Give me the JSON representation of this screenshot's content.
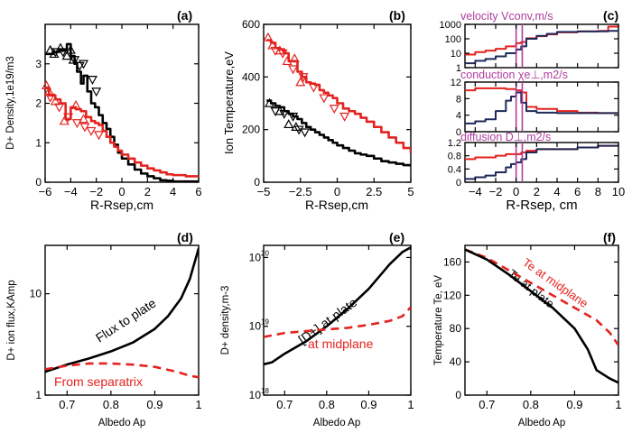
{
  "colors": {
    "black": "#000000",
    "red": "#e3231f",
    "magenta": "#b03d9e",
    "navy": "#1f2a5a"
  },
  "panels": {
    "a": {
      "label": "(a)"
    },
    "b": {
      "label": "(b)"
    },
    "c": {
      "label": "(c)"
    },
    "d": {
      "label": "(d)"
    },
    "e": {
      "label": "(e)"
    },
    "f": {
      "label": "(f)"
    }
  },
  "chart_data": [
    {
      "id": "a",
      "type": "line",
      "xlabel": "R-Rsep,cm",
      "ylabel": "D+ Density,1e19/m3",
      "xlim": [
        -6,
        6
      ],
      "ylim": [
        0,
        4
      ],
      "xticks": [
        -6,
        -4,
        -2,
        0,
        2,
        4,
        6
      ],
      "xtick_labels": [
        "−6",
        "−4",
        "−2",
        "0",
        "2",
        "4",
        "6"
      ],
      "yticks": [
        0,
        1,
        2,
        3
      ],
      "ytick_labels": [
        "0",
        "1",
        "2",
        "3"
      ],
      "series": [
        {
          "color": "black",
          "style": "step",
          "x": [
            -6,
            -5.4,
            -4.9,
            -4.3,
            -4.0,
            -3.7,
            -3.5,
            -3.2,
            -3.0,
            -2.7,
            -2.4,
            -2.1,
            -1.8,
            -1.5,
            -1.2,
            -0.9,
            -0.6,
            -0.3,
            0,
            0.5,
            1,
            1.5,
            2,
            2.5,
            3,
            3.5,
            4,
            5,
            6
          ],
          "y": [
            3.25,
            3.3,
            3.35,
            3.5,
            3.2,
            3.0,
            2.8,
            2.5,
            2.7,
            2.3,
            2.0,
            1.9,
            1.7,
            1.5,
            1.35,
            1.15,
            0.95,
            0.75,
            0.6,
            0.45,
            0.32,
            0.22,
            0.15,
            0.1,
            0.05,
            0.04,
            0.02,
            0.02,
            0.02
          ]
        },
        {
          "color": "red",
          "style": "step",
          "x": [
            -6,
            -5.7,
            -5.2,
            -4.8,
            -4.4,
            -4.0,
            -3.6,
            -3.2,
            -2.8,
            -2.4,
            -2.1,
            -1.8,
            -1.5,
            -1.2,
            -0.9,
            -0.6,
            -0.3,
            0,
            0.5,
            1,
            1.5,
            2,
            2.5,
            3,
            3.5,
            4,
            5,
            6
          ],
          "y": [
            2.4,
            2.2,
            2.1,
            2.0,
            1.6,
            1.9,
            1.85,
            1.8,
            1.65,
            1.55,
            1.5,
            1.45,
            1.3,
            1.15,
            1.0,
            0.9,
            0.8,
            0.7,
            0.6,
            0.5,
            0.42,
            0.35,
            0.3,
            0.25,
            0.2,
            0.18,
            0.15,
            0.15
          ]
        }
      ],
      "markers": [
        {
          "color": "black",
          "symbol": "triangle-up",
          "x": [
            -5.6,
            -5.3,
            -4.8,
            -4.3,
            -4.0,
            -3.8
          ],
          "y": [
            3.35,
            3.25,
            3.4,
            3.2,
            3.35,
            3.1
          ]
        },
        {
          "color": "black",
          "symbol": "triangle-down",
          "x": [
            -5.2,
            -4.6,
            -3.7,
            -3.3,
            -3.0,
            -2.3,
            -2.0
          ],
          "y": [
            3.3,
            3.3,
            3.1,
            2.95,
            3.0,
            2.6,
            2.3
          ]
        },
        {
          "color": "red",
          "symbol": "triangle-up",
          "x": [
            -5.9,
            -5.7,
            -5.2,
            -4.5,
            -3.6,
            -3.0
          ],
          "y": [
            2.45,
            2.3,
            2.05,
            1.55,
            1.95,
            1.6
          ]
        },
        {
          "color": "red",
          "symbol": "triangle-down",
          "x": [
            -5.6,
            -4.9,
            -4.2,
            -3.5,
            -2.9,
            -2.4,
            -1.8
          ],
          "y": [
            2.15,
            1.9,
            1.65,
            1.5,
            1.4,
            1.3,
            1.2
          ]
        }
      ]
    },
    {
      "id": "b",
      "type": "line",
      "xlabel": "R-Rsep,cm",
      "ylabel": "Ion Temperature,eV",
      "xlim": [
        -5,
        5
      ],
      "ylim": [
        0,
        600
      ],
      "xticks": [
        -5,
        -2.5,
        0,
        2.5,
        5
      ],
      "xtick_labels": [
        "−5",
        "−2.5",
        "0",
        "2.5",
        "5"
      ],
      "yticks": [
        0,
        200,
        400,
        600
      ],
      "ytick_labels": [
        "0",
        "200",
        "400",
        "600"
      ],
      "series": [
        {
          "color": "red",
          "style": "step",
          "x": [
            -4.8,
            -4.5,
            -4.2,
            -3.9,
            -3.6,
            -3.3,
            -3.0,
            -2.7,
            -2.4,
            -2.1,
            -1.8,
            -1.5,
            -1.2,
            -0.9,
            -0.6,
            -0.3,
            0,
            0.4,
            0.8,
            1.2,
            1.6,
            2.0,
            2.5,
            3.0,
            3.5,
            4.0,
            4.5,
            5.0
          ],
          "y": [
            540,
            530,
            510,
            505,
            490,
            460,
            460,
            420,
            400,
            380,
            375,
            370,
            350,
            340,
            330,
            320,
            300,
            280,
            270,
            260,
            245,
            230,
            210,
            190,
            170,
            150,
            130,
            110
          ]
        },
        {
          "color": "black",
          "style": "step",
          "x": [
            -4.8,
            -4.5,
            -4.2,
            -3.9,
            -3.6,
            -3.3,
            -3.0,
            -2.7,
            -2.4,
            -2.1,
            -1.8,
            -1.5,
            -1.2,
            -0.9,
            -0.6,
            -0.3,
            0,
            0.4,
            0.8,
            1.2,
            1.6,
            2.0,
            2.5,
            3.0,
            3.5,
            4.0,
            4.5,
            5.0
          ],
          "y": [
            310,
            300,
            290,
            285,
            270,
            260,
            250,
            240,
            225,
            210,
            200,
            190,
            180,
            170,
            160,
            150,
            140,
            130,
            120,
            110,
            105,
            100,
            90,
            80,
            75,
            70,
            65,
            60
          ]
        }
      ],
      "markers": [
        {
          "color": "red",
          "symbol": "triangle-up",
          "x": [
            -4.7,
            -4.4,
            -3.9,
            -3.4,
            -2.9,
            -2.5
          ],
          "y": [
            550,
            520,
            500,
            460,
            470,
            380
          ]
        },
        {
          "color": "red",
          "symbol": "triangle-down",
          "x": [
            -4.2,
            -3.7,
            -3.0,
            -2.3,
            -1.6,
            -0.9,
            -0.2,
            0.5
          ],
          "y": [
            500,
            490,
            430,
            400,
            360,
            320,
            280,
            250
          ]
        },
        {
          "color": "black",
          "symbol": "triangle-up",
          "x": [
            -4.6,
            -3.9,
            -3.3,
            -2.8
          ],
          "y": [
            300,
            270,
            220,
            210
          ]
        },
        {
          "color": "black",
          "symbol": "triangle-down",
          "x": [
            -4.2,
            -3.6,
            -3.0,
            -2.6,
            -2.2
          ],
          "y": [
            270,
            260,
            250,
            200,
            190
          ]
        }
      ]
    },
    {
      "id": "c",
      "type": "line",
      "xlabel": "R-Rsep, cm",
      "xlim": [
        -5,
        10
      ],
      "xticks": [
        -4,
        -2,
        0,
        2,
        4,
        6,
        8,
        10
      ],
      "xtick_labels": [
        "−4",
        "−2",
        "0",
        "2",
        "4",
        "6",
        "8",
        "10"
      ],
      "subplots": [
        {
          "title": "velocity Vconv,m/s",
          "yscale": "log",
          "ylim": [
            1,
            1000
          ],
          "yticks": [
            1,
            10,
            100,
            1000
          ],
          "ytick_labels": [
            "1",
            "10",
            "100",
            "1000"
          ],
          "series": [
            {
              "color": "red",
              "style": "step",
              "x": [
                -5,
                -4,
                -3,
                -2,
                -1,
                0,
                0.5,
                1,
                2,
                3,
                4,
                6,
                8,
                9,
                10
              ],
              "y": [
                8,
                12,
                15,
                20,
                30,
                50,
                60,
                110,
                150,
                200,
                280,
                330,
                350,
                700,
                900
              ]
            },
            {
              "color": "navy",
              "style": "step",
              "x": [
                -5,
                -4,
                -3,
                -2,
                -1,
                0,
                0.5,
                1,
                2,
                3,
                4,
                6,
                8,
                9,
                10
              ],
              "y": [
                2,
                3,
                4,
                6,
                10,
                18,
                30,
                100,
                160,
                220,
                300,
                320,
                330,
                350,
                350
              ]
            }
          ],
          "vlines": [
            0,
            0.6
          ]
        },
        {
          "title": "conduction χe⊥,m2/s",
          "ylim": [
            0,
            12
          ],
          "yticks": [
            0,
            4,
            8,
            12
          ],
          "ytick_labels": [
            "0",
            "4",
            "8",
            "12"
          ],
          "series": [
            {
              "color": "red",
              "style": "step",
              "x": [
                -5,
                -4,
                -3,
                -2,
                -1,
                0,
                0.5,
                1,
                2,
                4,
                6,
                8,
                10
              ],
              "y": [
                10,
                10.5,
                10.5,
                10.5,
                10.3,
                10,
                9.5,
                6,
                5.5,
                5,
                4.6,
                4.5,
                4.5
              ]
            },
            {
              "color": "navy",
              "style": "step",
              "x": [
                -5,
                -4,
                -3,
                -2,
                -1,
                -0.5,
                0,
                0.5,
                1,
                2,
                4,
                6,
                8,
                10
              ],
              "y": [
                2,
                2.5,
                3,
                5,
                7.5,
                8.5,
                9.5,
                7,
                5,
                4.6,
                4.5,
                4.5,
                4.5,
                4.5
              ]
            }
          ],
          "vlines": [
            0,
            0.6
          ]
        },
        {
          "title": "diffusion D⊥,m2/s",
          "ylim": [
            0,
            1.2
          ],
          "yticks": [
            0,
            0.4,
            0.8,
            1.2
          ],
          "ytick_labels": [
            "0",
            "0.4",
            "0.8",
            "1.2"
          ],
          "series": [
            {
              "color": "red",
              "style": "step",
              "x": [
                -5,
                -4,
                -3,
                -2,
                -1,
                0,
                0.5,
                1,
                2,
                4,
                6,
                8,
                10
              ],
              "y": [
                0.7,
                0.75,
                0.75,
                0.8,
                0.85,
                0.85,
                0.9,
                0.95,
                1.0,
                1.0,
                1.05,
                1.1,
                1.1
              ]
            },
            {
              "color": "navy",
              "style": "step",
              "x": [
                -5,
                -4,
                -3,
                -2,
                -1,
                -0.5,
                0,
                0.5,
                1,
                2,
                4,
                6,
                8,
                10
              ],
              "y": [
                0.1,
                0.15,
                0.2,
                0.3,
                0.45,
                0.55,
                0.6,
                0.7,
                0.9,
                1.0,
                1.0,
                1.05,
                1.1,
                1.1
              ]
            }
          ],
          "vlines": [
            0,
            0.6
          ]
        }
      ]
    },
    {
      "id": "d",
      "type": "line",
      "xlabel": "Albedo Ap",
      "ylabel": "D+ ion flux,KAmp",
      "xlim": [
        0.65,
        1.0
      ],
      "yscale": "log",
      "ylim": [
        1,
        30
      ],
      "xticks": [
        0.7,
        0.8,
        0.9,
        1
      ],
      "xtick_labels": [
        "0.7",
        "0.8",
        "0.9",
        "1"
      ],
      "yticks": [
        1,
        10
      ],
      "ytick_labels": [
        "1",
        "10"
      ],
      "series": [
        {
          "name": "Flux to plate",
          "color": "black",
          "style": "solid",
          "x": [
            0.65,
            0.7,
            0.75,
            0.8,
            0.85,
            0.9,
            0.93,
            0.96,
            0.98,
            1.0
          ],
          "y": [
            1.7,
            2.0,
            2.3,
            2.7,
            3.3,
            4.5,
            6,
            9,
            14,
            28
          ]
        },
        {
          "name": "From separatrix",
          "color": "red",
          "style": "dashed",
          "x": [
            0.65,
            0.7,
            0.75,
            0.8,
            0.85,
            0.9,
            0.95,
            0.98,
            1.0
          ],
          "y": [
            1.8,
            1.95,
            2.05,
            2.05,
            2.0,
            1.9,
            1.7,
            1.55,
            1.5
          ]
        }
      ]
    },
    {
      "id": "e",
      "type": "line",
      "xlabel": "Albedo Ap",
      "ylabel": "D+ density,m-3",
      "xlim": [
        0.65,
        1.0
      ],
      "yscale": "log",
      "ylim": [
        1e+18,
        1.5e+20
      ],
      "xticks": [
        0.7,
        0.8,
        0.9,
        1
      ],
      "xtick_labels": [
        "0.7",
        "0.8",
        "0.9",
        "1"
      ],
      "yticks": [
        1e+18,
        1e+19,
        1e+20
      ],
      "ytick_labels": [
        "10",
        "10",
        "10"
      ],
      "ytick_exponents": [
        "18",
        "19",
        "20"
      ],
      "series": [
        {
          "name": "[D+] at plate",
          "color": "black",
          "style": "solid",
          "x": [
            0.65,
            0.67,
            0.7,
            0.75,
            0.8,
            0.85,
            0.9,
            0.95,
            0.98,
            1.0
          ],
          "y": [
            2.8e+18,
            3e+18,
            4e+18,
            6e+18,
            1e+19,
            1.8e+19,
            3.5e+19,
            8e+19,
            1.2e+20,
            1.4e+20
          ]
        },
        {
          "name": "at midplane",
          "color": "red",
          "style": "dashed",
          "x": [
            0.65,
            0.7,
            0.75,
            0.8,
            0.85,
            0.9,
            0.95,
            0.98,
            1.0
          ],
          "y": [
            7e+18,
            8e+18,
            8.5e+18,
            9e+18,
            9.5e+18,
            1.05e+19,
            1.2e+19,
            1.4e+19,
            1.9e+19
          ]
        }
      ]
    },
    {
      "id": "f",
      "type": "line",
      "xlabel": "Albedo Ap",
      "ylabel": "Temperature Te, eV",
      "xlim": [
        0.65,
        1.0
      ],
      "ylim": [
        0,
        180
      ],
      "xticks": [
        0.7,
        0.8,
        0.9,
        1
      ],
      "xtick_labels": [
        "0.7",
        "0.8",
        "0.9",
        "1"
      ],
      "yticks": [
        0,
        40,
        80,
        120,
        160
      ],
      "ytick_labels": [
        "0",
        "40",
        "80",
        "120",
        "160"
      ],
      "series": [
        {
          "name": "Te at midplane",
          "color": "red",
          "style": "dashed",
          "x": [
            0.65,
            0.7,
            0.75,
            0.8,
            0.85,
            0.9,
            0.95,
            0.98,
            1.0
          ],
          "y": [
            175,
            165,
            150,
            135,
            120,
            105,
            90,
            75,
            60
          ]
        },
        {
          "name": "Te at plate",
          "color": "black",
          "style": "solid",
          "x": [
            0.65,
            0.7,
            0.75,
            0.8,
            0.85,
            0.9,
            0.93,
            0.95,
            0.98,
            1.0
          ],
          "y": [
            175,
            163,
            145,
            125,
            105,
            80,
            55,
            30,
            20,
            15
          ]
        }
      ]
    }
  ]
}
